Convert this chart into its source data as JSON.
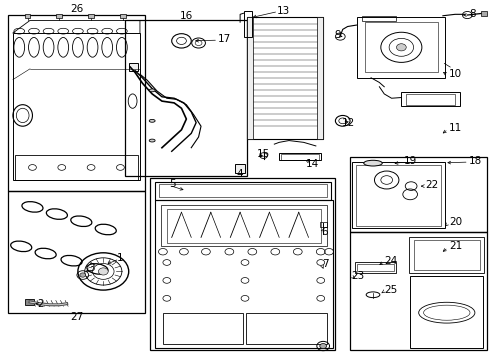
{
  "bg_color": "#ffffff",
  "line_color": "#000000",
  "fig_w": 4.9,
  "fig_h": 3.6,
  "dpi": 100,
  "label_fs": 7.5,
  "boxes": {
    "26": [
      0.015,
      0.04,
      0.295,
      0.53
    ],
    "27_inner": [
      0.015,
      0.53,
      0.295,
      0.87
    ],
    "16": [
      0.255,
      0.055,
      0.505,
      0.49
    ],
    "4": [
      0.305,
      0.495,
      0.685,
      0.975
    ],
    "18": [
      0.715,
      0.435,
      0.995,
      0.645
    ],
    "23": [
      0.715,
      0.645,
      0.995,
      0.975
    ]
  },
  "labels": {
    "26": [
      0.155,
      0.023,
      "center"
    ],
    "27": [
      0.155,
      0.882,
      "center"
    ],
    "16": [
      0.38,
      0.043,
      "center"
    ],
    "17": [
      0.445,
      0.108,
      "left"
    ],
    "4": [
      0.49,
      0.482,
      "center"
    ],
    "5": [
      0.345,
      0.512,
      "left"
    ],
    "6": [
      0.657,
      0.645,
      "left"
    ],
    "7": [
      0.657,
      0.735,
      "left"
    ],
    "8": [
      0.958,
      0.038,
      "left"
    ],
    "9": [
      0.69,
      0.095,
      "center"
    ],
    "10": [
      0.918,
      0.205,
      "left"
    ],
    "11": [
      0.918,
      0.355,
      "left"
    ],
    "12": [
      0.698,
      0.34,
      "left"
    ],
    "13": [
      0.565,
      0.028,
      "left"
    ],
    "14": [
      0.625,
      0.455,
      "left"
    ],
    "15": [
      0.525,
      0.428,
      "left"
    ],
    "18": [
      0.958,
      0.448,
      "left"
    ],
    "19": [
      0.825,
      0.448,
      "left"
    ],
    "20": [
      0.918,
      0.618,
      "left"
    ],
    "21": [
      0.918,
      0.685,
      "left"
    ],
    "22": [
      0.868,
      0.515,
      "left"
    ],
    "23": [
      0.718,
      0.768,
      "left"
    ],
    "24": [
      0.785,
      0.725,
      "left"
    ],
    "25": [
      0.785,
      0.808,
      "left"
    ],
    "1": [
      0.245,
      0.718,
      "center"
    ],
    "2": [
      0.082,
      0.845,
      "center"
    ],
    "3": [
      0.185,
      0.745,
      "center"
    ]
  }
}
